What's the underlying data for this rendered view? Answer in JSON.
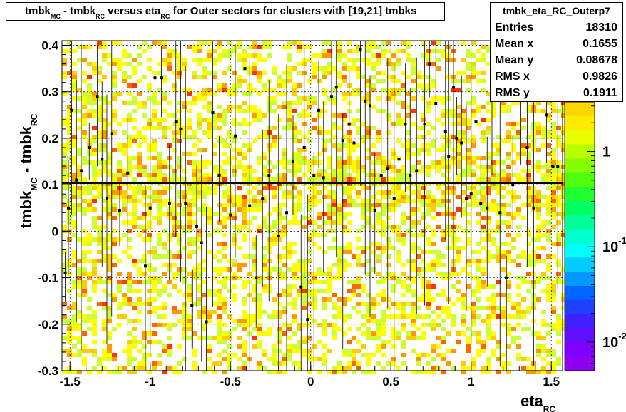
{
  "title": {
    "p1": "tmbk",
    "s1": "MC",
    "p2": " - tmbk",
    "s2": "RC",
    "p3": "  versus eta",
    "s3": "RC",
    "p4": "  for Outer sectors for clusters with [19,21] tmbks"
  },
  "stats": {
    "name": "tmbk_eta_RC_Outerp7",
    "rows": [
      {
        "label": "Entries",
        "value": "18310"
      },
      {
        "label": "Mean x",
        "value": "0.1655"
      },
      {
        "label": "Mean y",
        "value": "0.08678"
      },
      {
        "label": "RMS x",
        "value": "0.9826"
      },
      {
        "label": "RMS y",
        "value": "0.1911"
      }
    ]
  },
  "chart_data": {
    "type": "heatmap",
    "xlabel": "eta",
    "xlabel_sub": "RC",
    "ylabel": "tmbk",
    "ylabel_sub1": "MC",
    "ylabel_mid": " - tmbk",
    "ylabel_sub2": "RC",
    "xlim": [
      -1.55,
      1.57
    ],
    "ylim": [
      -0.3,
      0.41
    ],
    "x_ticks": [
      -1.5,
      -1,
      -0.5,
      0,
      0.5,
      1,
      1.5
    ],
    "x_tick_labels": [
      "-1.5",
      "-1",
      "-0.5",
      "0",
      "0.5",
      "1",
      "1.5"
    ],
    "y_ticks": [
      -0.3,
      -0.2,
      -0.1,
      0,
      0.1,
      0.2,
      0.3,
      0.4
    ],
    "y_tick_labels": [
      "-0.3",
      "-0.2",
      "-0.1",
      "0",
      "0.1",
      "0.2",
      "0.3",
      "0.4"
    ],
    "grid": true,
    "fit_line_y": 0.104,
    "palette_labels": [
      {
        "base": "1",
        "exp": "",
        "value": 1
      },
      {
        "base": "10",
        "exp": "-1",
        "value": 0.1
      },
      {
        "base": "10",
        "exp": "-2",
        "value": 0.01
      }
    ],
    "z_log_range": [
      -2.3,
      0.52
    ],
    "palette_colors": [
      "#ffd700",
      "#ffea00",
      "#e8ff00",
      "#b8ff00",
      "#88ff00",
      "#50ff10",
      "#20ff30",
      "#00ff60",
      "#00ff99",
      "#00ffcc",
      "#00ffff",
      "#00ccff",
      "#0099ff",
      "#0066ff",
      "#2040ff",
      "#4020ff",
      "#6010ff",
      "#8000ff",
      "#9000f0"
    ],
    "cell_colors": [
      "#ffff00",
      "#ccff33",
      "#ffcc00",
      "#ff9900",
      "#ff6600",
      "#ff3300"
    ],
    "profile_points": [
      {
        "x": -1.53,
        "y": -0.09
      },
      {
        "x": -1.51,
        "y": 0.05
      },
      {
        "x": -1.49,
        "y": 0.26
      },
      {
        "x": -1.46,
        "y": 0.11
      },
      {
        "x": -1.43,
        "y": 0.13
      },
      {
        "x": -1.38,
        "y": 0.18
      },
      {
        "x": -1.33,
        "y": 0.29
      },
      {
        "x": -1.3,
        "y": 0.155
      },
      {
        "x": -1.27,
        "y": 0.07
      },
      {
        "x": -1.24,
        "y": 0.21
      },
      {
        "x": -1.19,
        "y": 0.045
      },
      {
        "x": -1.14,
        "y": 0.125
      },
      {
        "x": -1.03,
        "y": -0.075
      },
      {
        "x": -1.0,
        "y": 0.05
      },
      {
        "x": -0.97,
        "y": 0.33
      },
      {
        "x": -0.93,
        "y": 0.33
      },
      {
        "x": -0.88,
        "y": 0.06
      },
      {
        "x": -0.84,
        "y": 0.235
      },
      {
        "x": -0.81,
        "y": 0.22
      },
      {
        "x": -0.78,
        "y": 0.06
      },
      {
        "x": -0.74,
        "y": -0.16
      },
      {
        "x": -0.71,
        "y": 0.01
      },
      {
        "x": -0.68,
        "y": -0.025
      },
      {
        "x": -0.65,
        "y": -0.195
      },
      {
        "x": -0.61,
        "y": 0.255
      },
      {
        "x": -0.57,
        "y": 0.12
      },
      {
        "x": -0.5,
        "y": 0.035
      },
      {
        "x": -0.47,
        "y": 0.205
      },
      {
        "x": -0.41,
        "y": 0.35
      },
      {
        "x": -0.38,
        "y": 0.055
      },
      {
        "x": -0.34,
        "y": -0.1
      },
      {
        "x": -0.3,
        "y": 0.07
      },
      {
        "x": -0.26,
        "y": 0.12
      },
      {
        "x": -0.2,
        "y": -0.01
      },
      {
        "x": -0.15,
        "y": 0.04
      },
      {
        "x": -0.11,
        "y": 0.15
      },
      {
        "x": -0.06,
        "y": -0.12
      },
      {
        "x": -0.04,
        "y": 0.18
      },
      {
        "x": -0.02,
        "y": -0.19
      },
      {
        "x": 0.02,
        "y": 0.12
      },
      {
        "x": 0.05,
        "y": 0.26
      },
      {
        "x": 0.08,
        "y": 0.115
      },
      {
        "x": 0.13,
        "y": 0.29
      },
      {
        "x": 0.16,
        "y": 0.31
      },
      {
        "x": 0.2,
        "y": 0.195
      },
      {
        "x": 0.24,
        "y": 0.23
      },
      {
        "x": 0.27,
        "y": 0.19
      },
      {
        "x": 0.31,
        "y": 0.39
      },
      {
        "x": 0.34,
        "y": 0.28
      },
      {
        "x": 0.37,
        "y": 0.27
      },
      {
        "x": 0.4,
        "y": 0.045
      },
      {
        "x": 0.44,
        "y": 0.12
      },
      {
        "x": 0.48,
        "y": 0.135
      },
      {
        "x": 0.52,
        "y": 0.07
      },
      {
        "x": 0.55,
        "y": 0.155
      },
      {
        "x": 0.59,
        "y": 0.23
      },
      {
        "x": 0.62,
        "y": 0.12
      },
      {
        "x": 0.66,
        "y": 0.13
      },
      {
        "x": 0.71,
        "y": 0.23
      },
      {
        "x": 0.74,
        "y": 0.36
      },
      {
        "x": 0.78,
        "y": 0.275
      },
      {
        "x": 0.84,
        "y": 0.215
      },
      {
        "x": 0.86,
        "y": 0.16
      },
      {
        "x": 0.89,
        "y": 0.31
      },
      {
        "x": 0.91,
        "y": 0.2
      },
      {
        "x": 0.94,
        "y": 0.19
      },
      {
        "x": 0.97,
        "y": 0.07
      },
      {
        "x": 1.0,
        "y": 0.08
      },
      {
        "x": 1.03,
        "y": 0.235
      },
      {
        "x": 1.06,
        "y": 0.06
      },
      {
        "x": 1.1,
        "y": 0.05
      },
      {
        "x": 1.13,
        "y": 0.37
      },
      {
        "x": 1.18,
        "y": 0.04
      },
      {
        "x": 1.22,
        "y": -0.1
      },
      {
        "x": 1.26,
        "y": 0.1
      },
      {
        "x": 1.31,
        "y": 0.32
      },
      {
        "x": 1.35,
        "y": 0.18
      },
      {
        "x": 1.39,
        "y": 0.05
      },
      {
        "x": 1.43,
        "y": 0.3
      },
      {
        "x": 1.47,
        "y": 0.25
      },
      {
        "x": 1.51,
        "y": 0.14
      },
      {
        "x": 1.54,
        "y": 0.14
      }
    ]
  }
}
